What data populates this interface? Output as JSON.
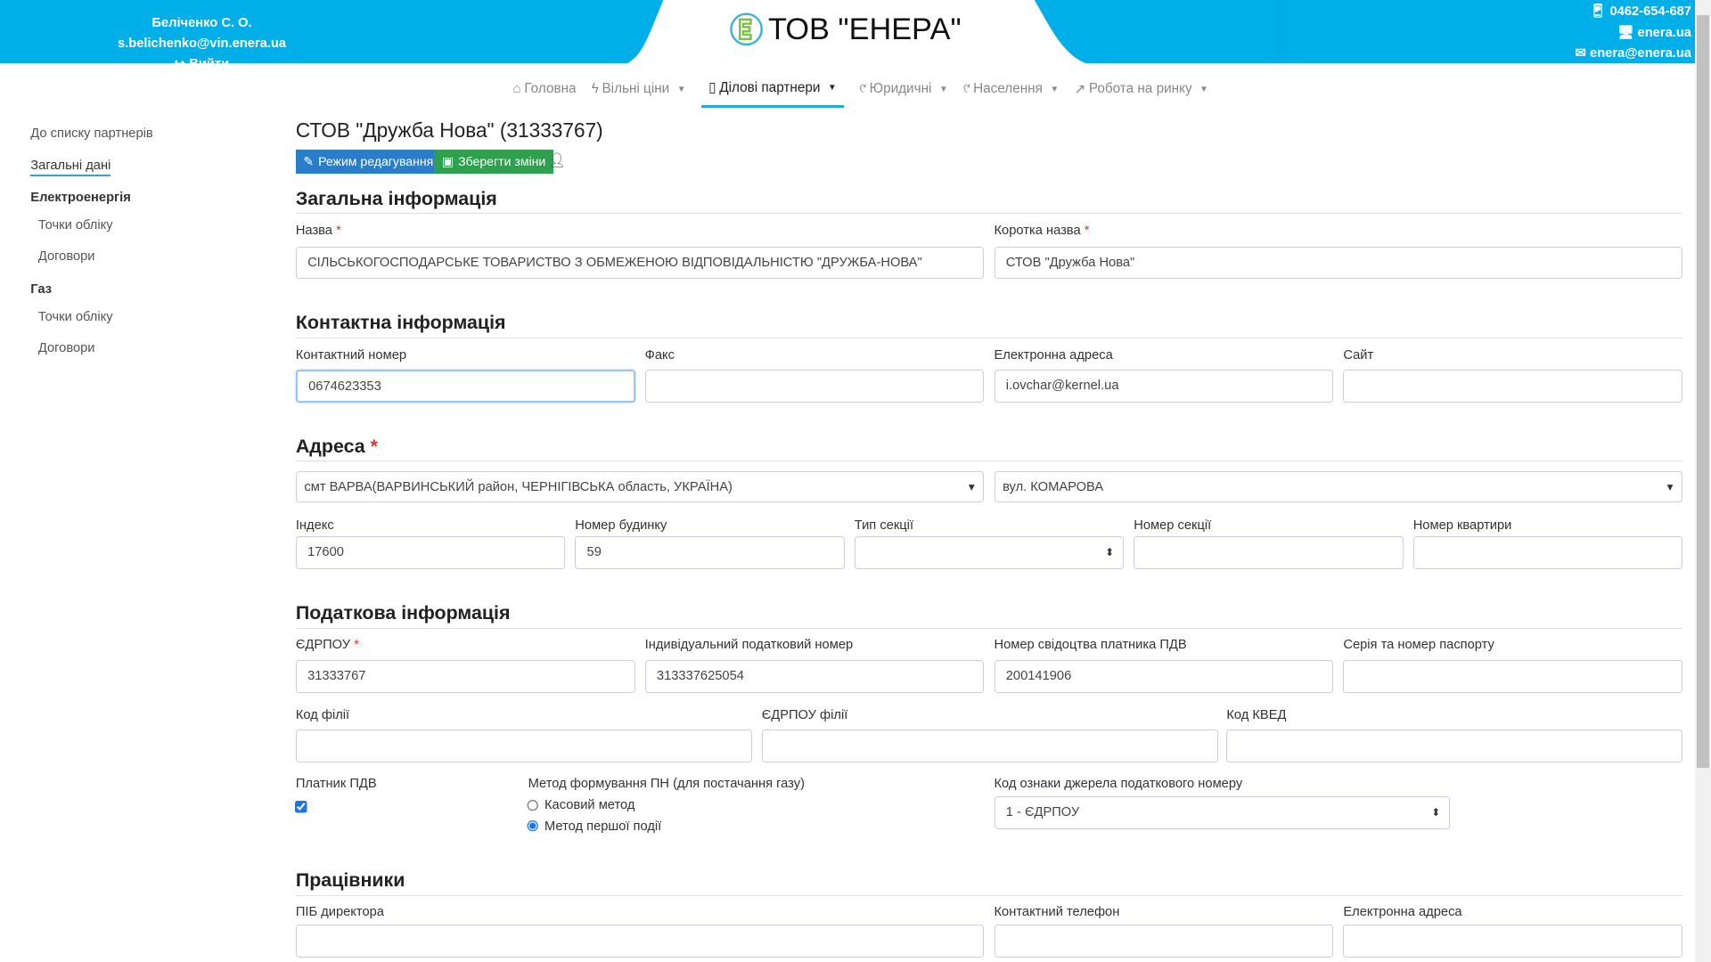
{
  "header": {
    "user": "Беліченко С. О. s.belichenko@vin.enera.ua",
    "logout": "Вийти",
    "brand": "ТОВ \"ЕНЕРА\"",
    "phone": "0462-654-687",
    "site": "enera.ua",
    "email": "enera@enera.ua",
    "color": "#00aee8"
  },
  "nav": [
    {
      "label": "Головна",
      "icon": "home-icon"
    },
    {
      "label": "Вільні ціни",
      "icon": "bolt-icon"
    },
    {
      "label": "Ділові партнери",
      "icon": "badge-icon",
      "active": true
    },
    {
      "label": "Юридичні",
      "icon": "flame-icon"
    },
    {
      "label": "Населення",
      "icon": "flame-icon"
    },
    {
      "label": "Робота на ринку",
      "icon": "chart-icon"
    }
  ],
  "sidebar": {
    "back": "До списку партнерів",
    "general": "Загальні дані",
    "electricity": "Електроенергія",
    "e_points": "Точки обліку",
    "e_contracts": "Договори",
    "gas": "Газ",
    "g_points": "Точки обліку",
    "g_contracts": "Договори"
  },
  "page": {
    "title": "СТОВ \"Дружба Нова\" (31333767)",
    "edit_btn": "Режим редагування",
    "save_btn": "Зберегти зміни"
  },
  "general": {
    "heading": "Загальна інформація",
    "name_label": "Назва",
    "name": "СІЛЬСЬКОГОСПОДАРСЬКЕ ТОВАРИСТВО З ОБМЕЖЕНОЮ ВІДПОВІДАЛЬНІСТЮ \"ДРУЖБА-НОВА\"",
    "short_label": "Коротка назва",
    "short": "СТОВ \"Дружба Нова\""
  },
  "contact": {
    "heading": "Контактна інформація",
    "phone_label": "Контактний номер",
    "phone": "0674623353",
    "fax_label": "Факс",
    "fax": "",
    "email_label": "Електронна адреса",
    "email": "i.ovchar@kernel.ua",
    "site_label": "Сайт",
    "site": ""
  },
  "address": {
    "heading": "Адреса",
    "city": "смт ВАРВА(ВАРВИНСЬКИЙ район, ЧЕРНІГІВСЬКА область, УКРАЇНА)",
    "street": "вул. КОМАРОВА",
    "index_label": "Індекс",
    "index": "17600",
    "house_label": "Номер будинку",
    "house": "59",
    "sectype_label": "Тип секції",
    "sectype": "",
    "secnum_label": "Номер секції",
    "secnum": "",
    "apt_label": "Номер квартири",
    "apt": ""
  },
  "tax": {
    "heading": "Податкова інформація",
    "edrpou_label": "ЄДРПОУ",
    "edrpou": "31333767",
    "ipn_label": "Індивідуальний податковий номер",
    "ipn": "313337625054",
    "vat_cert_label": "Номер свідоцтва платника ПДВ",
    "vat_cert": "200141906",
    "passport_label": "Серія та номер паспорту",
    "passport": "",
    "branch_label": "Код філії",
    "branch": "",
    "branch_edrpou_label": "ЄДРПОУ філії",
    "branch_edrpou": "",
    "kved_label": "Код КВЕД",
    "kved": "",
    "vat_payer_label": "Платник ПДВ",
    "vat_payer": true,
    "method_label": "Метод формування ПН (для постачання газу)",
    "method_cash": "Касовий метод",
    "method_first": "Метод першої події",
    "method_selected": "Метод першої події",
    "source_label": "Код ознаки джерела податкового номеру",
    "source": "1 - ЄДРПОУ"
  },
  "staff": {
    "heading": "Працівники",
    "director_label": "ПІБ директора",
    "director": "",
    "phone_label": "Контактний телефон",
    "phone": "",
    "email_label": "Електронна адреса",
    "email": ""
  }
}
